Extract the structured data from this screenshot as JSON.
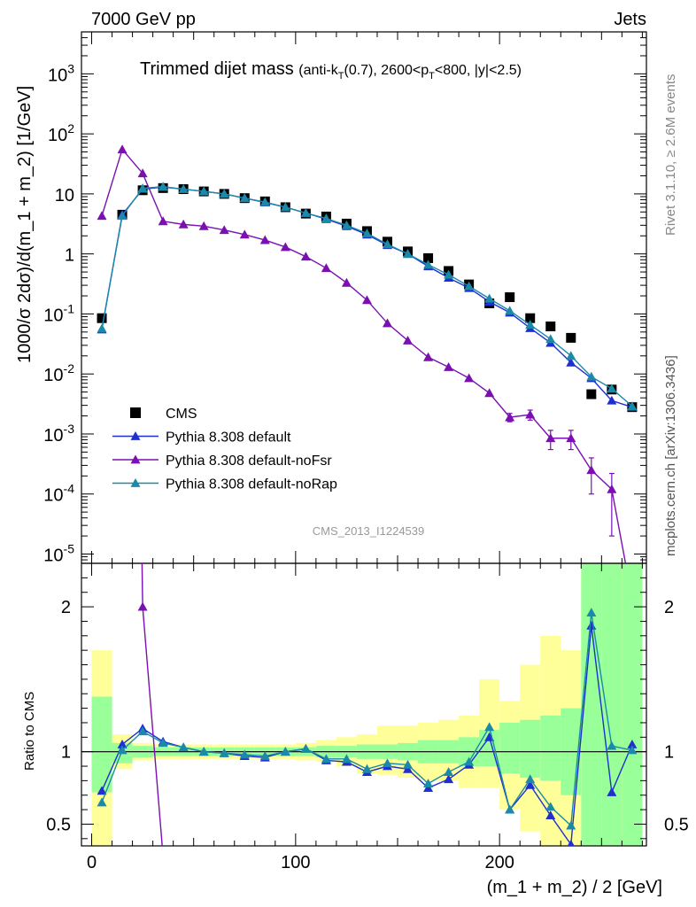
{
  "header": {
    "left": "7000 GeV pp",
    "right": "Jets",
    "title_main": "Trimmed dijet mass",
    "title_details": "(anti-kT(0.7), 2600<pT<800, |y|<2.5)",
    "watermark": "CMS_2013_I1224539",
    "side_top": "Rivet 3.1.10, ≥ 2.6M events",
    "side_bottom": "mcplots.cern.ch [arXiv:1306.3436]"
  },
  "colors": {
    "cms": "#000000",
    "default": "#1f2fd0",
    "nofsr": "#7a10b0",
    "norap": "#1a8aa8",
    "band_yellow": "#ffff99",
    "band_green": "#99ff99"
  },
  "chart_data": {
    "type": "line",
    "xlabel": "(m_1 + m_2) / 2 [GeV]",
    "ylabel_top": "1000/σ 2dσ)/d(m_1 + m_2) [1/GeV]",
    "ylabel_bottom": "Ratio to CMS",
    "xlim": [
      -5,
      272
    ],
    "ylim_top": [
      7e-06,
      5000
    ],
    "yscale_top": "log",
    "ylim_bottom": [
      0.35,
      2.3
    ],
    "x_ticks": [
      "0",
      "100",
      "200"
    ],
    "y_ticks_top": [
      "10^-5",
      "10^-4",
      "10^-3",
      "10^-2",
      "10^-1",
      "1",
      "10",
      "10^2",
      "10^3"
    ],
    "y_ticks_bottom": [
      "0.5",
      "1",
      "2"
    ],
    "legend_position": "bottom-left",
    "legend": [
      "CMS",
      "Pythia 8.308 default",
      "Pythia 8.308 default-noFsr",
      "Pythia 8.308 default-noRap"
    ],
    "x": [
      5,
      15,
      25,
      35,
      45,
      55,
      65,
      75,
      85,
      95,
      105,
      115,
      125,
      135,
      145,
      155,
      165,
      175,
      185,
      195,
      205,
      215,
      225,
      235,
      245,
      255,
      265
    ],
    "cms": [
      0.085,
      4.5,
      11.5,
      12.5,
      12.0,
      11.0,
      10.0,
      8.5,
      7.5,
      6.0,
      4.7,
      4.2,
      3.2,
      2.4,
      1.6,
      1.1,
      0.85,
      0.52,
      0.31,
      0.15,
      0.19,
      0.085,
      0.062,
      0.04,
      0.0046,
      0.0055,
      0.0028
    ],
    "series": [
      {
        "name": "Pythia 8.308 default",
        "key": "default",
        "values": [
          0.055,
          4.5,
          12.0,
          13.0,
          12.0,
          11.0,
          10.0,
          8.5,
          7.2,
          6.0,
          4.8,
          3.8,
          2.9,
          2.1,
          1.4,
          1.0,
          0.62,
          0.4,
          0.27,
          0.16,
          0.105,
          0.058,
          0.033,
          0.0155,
          0.0085,
          0.0036,
          0.0028
        ]
      },
      {
        "name": "Pythia 8.308 default-noFsr",
        "key": "nofsr",
        "values": [
          4.3,
          55,
          22,
          3.5,
          3.1,
          2.9,
          2.5,
          2.1,
          1.7,
          1.3,
          0.9,
          0.58,
          0.33,
          0.17,
          0.07,
          0.036,
          0.019,
          0.013,
          0.0085,
          0.0048,
          0.0019,
          0.0021,
          0.00085,
          0.00085,
          0.00025,
          0.00012,
          0.0
        ],
        "errors": [
          0,
          0,
          0,
          0,
          0,
          0,
          0,
          0,
          0,
          0,
          0,
          0,
          0,
          0,
          0,
          0,
          0,
          0,
          0,
          0,
          0.0003,
          0.0004,
          0.0003,
          0.0003,
          0.00015,
          0.0001,
          0
        ]
      },
      {
        "name": "Pythia 8.308 default-noRap",
        "key": "norap",
        "values": [
          0.057,
          4.3,
          12.4,
          13.2,
          12.0,
          11.0,
          10.0,
          8.5,
          7.3,
          6.0,
          4.8,
          3.9,
          3.0,
          2.2,
          1.45,
          1.0,
          0.66,
          0.45,
          0.29,
          0.18,
          0.113,
          0.066,
          0.038,
          0.02,
          0.009,
          0.0057,
          0.0029
        ]
      }
    ],
    "ratio": {
      "default": [
        0.73,
        1.05,
        1.16,
        1.07,
        1.03,
        1.0,
        0.99,
        0.97,
        0.96,
        1.0,
        1.02,
        0.94,
        0.93,
        0.86,
        0.9,
        0.88,
        0.75,
        0.81,
        0.91,
        1.1,
        0.6,
        0.77,
        0.56,
        0.36,
        1.87,
        0.72,
        1.05
      ],
      "nofsr": [
        50,
        12,
        2.0,
        0.28,
        0.26,
        0.26,
        0.25,
        0.25,
        0.23,
        0.22,
        0.19,
        0.14,
        0.1,
        0.07,
        0.044,
        0.033,
        0.022,
        0.025,
        0.027,
        0.032,
        0.01,
        0.025,
        0.014,
        0.021,
        0.054,
        0.022,
        0.0
      ],
      "norap": [
        0.65,
        1.01,
        1.14,
        1.06,
        1.03,
        1.0,
        0.99,
        0.98,
        0.97,
        1.0,
        1.02,
        0.95,
        0.95,
        0.88,
        0.92,
        0.91,
        0.78,
        0.86,
        0.93,
        1.17,
        0.6,
        0.81,
        0.62,
        0.49,
        1.96,
        1.04,
        1.01
      ]
    },
    "bands": {
      "stat": [
        [
          0.72,
          1.38
        ],
        [
          0.92,
          1.06
        ],
        [
          0.96,
          1.04
        ],
        [
          0.97,
          1.03
        ],
        [
          0.97,
          1.03
        ],
        [
          0.97,
          1.03
        ],
        [
          0.97,
          1.03
        ],
        [
          0.97,
          1.03
        ],
        [
          0.97,
          1.03
        ],
        [
          0.97,
          1.03
        ],
        [
          0.97,
          1.03
        ],
        [
          0.96,
          1.04
        ],
        [
          0.96,
          1.04
        ],
        [
          0.95,
          1.05
        ],
        [
          0.95,
          1.05
        ],
        [
          0.94,
          1.06
        ],
        [
          0.92,
          1.08
        ],
        [
          0.92,
          1.08
        ],
        [
          0.9,
          1.1
        ],
        [
          0.9,
          1.15
        ],
        [
          0.85,
          1.2
        ],
        [
          0.82,
          1.22
        ],
        [
          0.8,
          1.25
        ],
        [
          0.7,
          1.3
        ],
        [
          0.35,
          2.3
        ],
        [
          0.35,
          2.3
        ],
        [
          0.35,
          2.3
        ]
      ],
      "total": [
        [
          0.35,
          1.7
        ],
        [
          0.88,
          1.12
        ],
        [
          0.94,
          1.06
        ],
        [
          0.95,
          1.05
        ],
        [
          0.95,
          1.05
        ],
        [
          0.95,
          1.05
        ],
        [
          0.95,
          1.05
        ],
        [
          0.95,
          1.05
        ],
        [
          0.95,
          1.05
        ],
        [
          0.95,
          1.05
        ],
        [
          0.94,
          1.06
        ],
        [
          0.93,
          1.08
        ],
        [
          0.9,
          1.1
        ],
        [
          0.85,
          1.12
        ],
        [
          0.84,
          1.18
        ],
        [
          0.82,
          1.18
        ],
        [
          0.8,
          1.2
        ],
        [
          0.8,
          1.22
        ],
        [
          0.75,
          1.25
        ],
        [
          0.75,
          1.5
        ],
        [
          0.6,
          1.35
        ],
        [
          0.45,
          1.6
        ],
        [
          0.35,
          1.8
        ],
        [
          0.35,
          1.7
        ],
        [
          0.35,
          2.3
        ],
        [
          0.35,
          2.3
        ],
        [
          0.35,
          2.3
        ]
      ]
    }
  }
}
